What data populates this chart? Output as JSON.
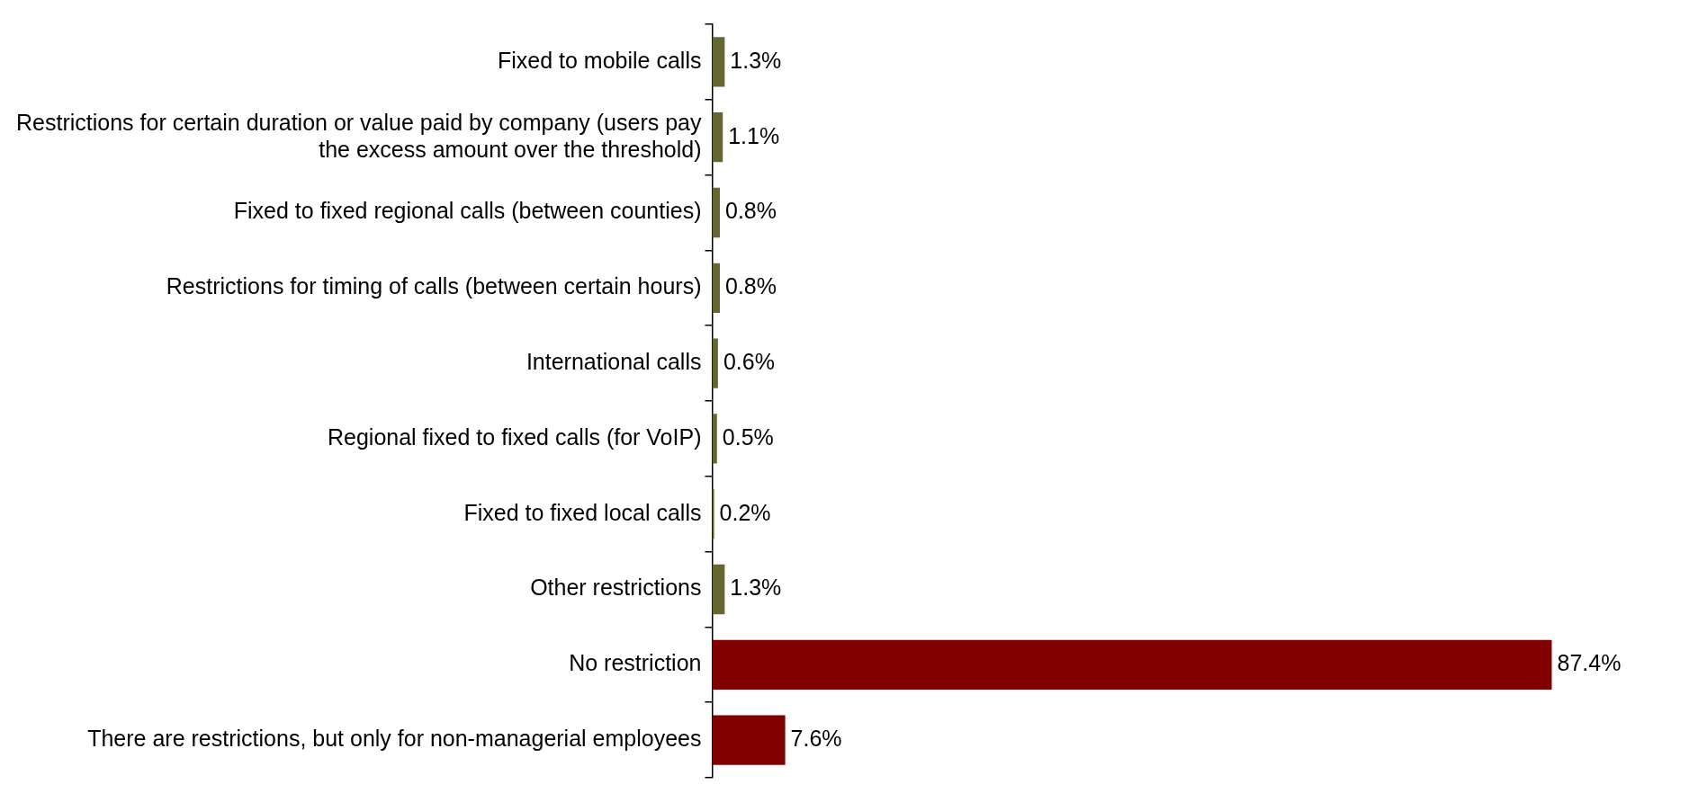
{
  "chart_data": {
    "type": "bar",
    "orientation": "horizontal",
    "categories": [
      "Fixed to mobile calls",
      "Restrictions for certain duration or value paid by company (users pay the excess amount over the threshold)",
      "Fixed to fixed regional calls (between counties)",
      "Restrictions for timing of calls (between certain hours)",
      "International calls",
      "Regional fixed to fixed calls (for VoIP)",
      "Fixed to fixed local calls",
      "Other restrictions",
      "No restriction",
      "There are restrictions, but only for non-managerial employees"
    ],
    "values": [
      1.3,
      1.1,
      0.8,
      0.8,
      0.6,
      0.5,
      0.2,
      1.3,
      87.4,
      7.6
    ],
    "value_labels": [
      "1.3%",
      "1.1%",
      "0.8%",
      "0.8%",
      "0.6%",
      "0.5%",
      "0.2%",
      "1.3%",
      "87.4%",
      "7.6%"
    ],
    "colors": [
      "#666633",
      "#666633",
      "#666633",
      "#666633",
      "#666633",
      "#666633",
      "#666633",
      "#666633",
      "#800000",
      "#800000"
    ],
    "legend": false,
    "tick_labels": "y"
  }
}
